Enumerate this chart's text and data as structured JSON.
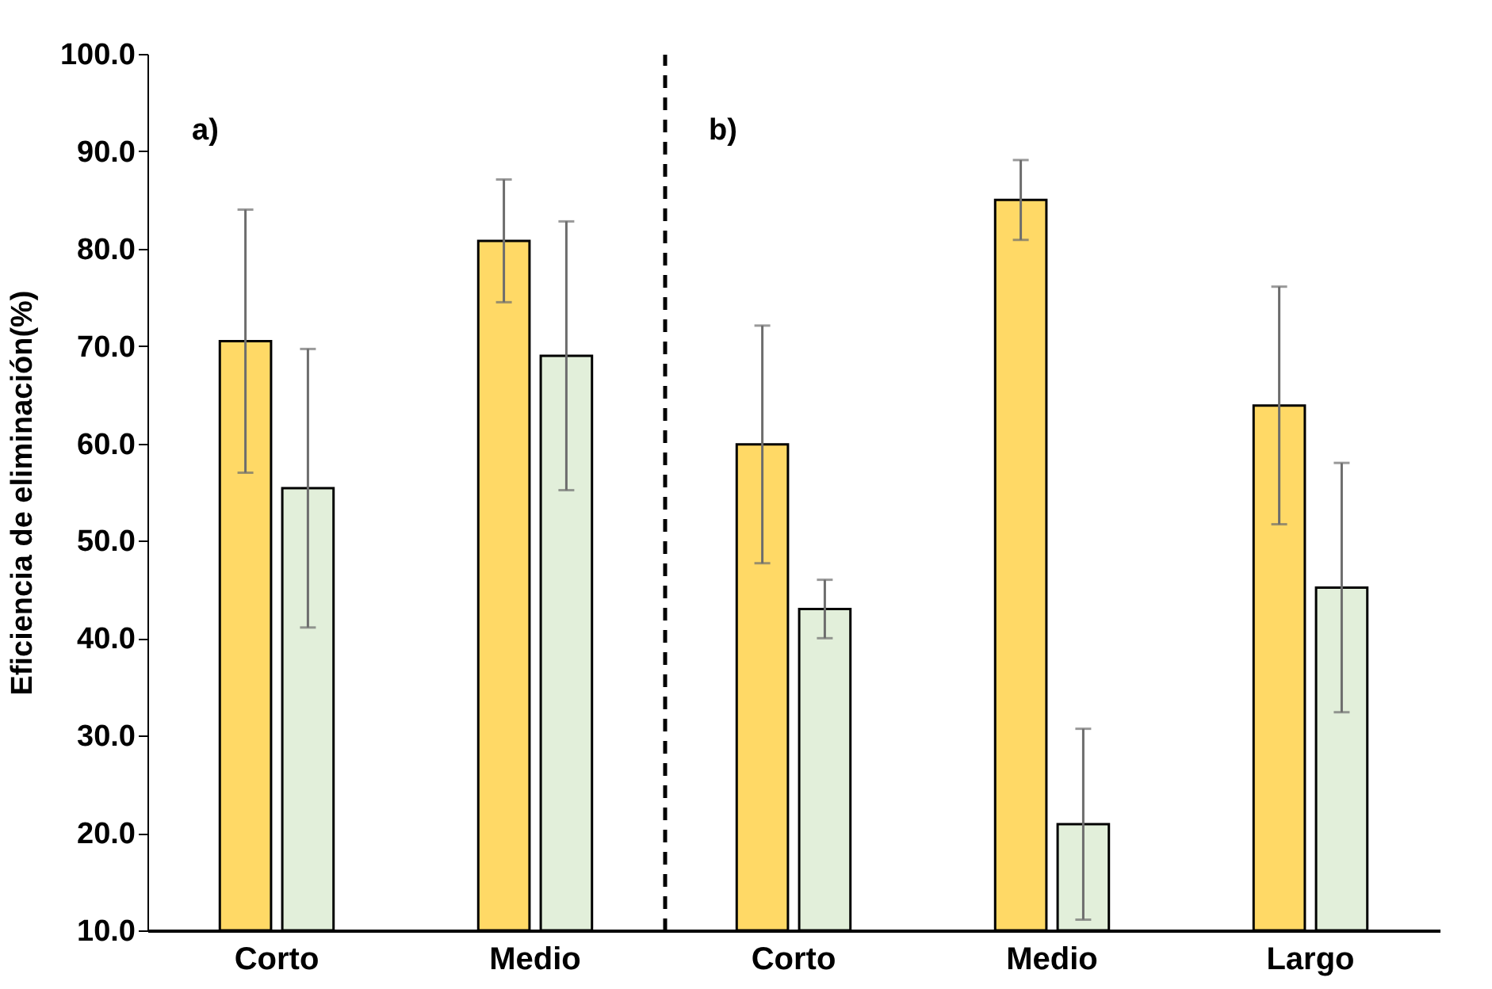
{
  "chart_data": [
    {
      "type": "bar",
      "categories": [
        "Corto",
        "Medio"
      ],
      "ylabel": "Eficiencia de eliminación(%)",
      "annotations": [
        "a)"
      ],
      "ylim": [
        10,
        100
      ],
      "yticks": [
        {
          "value": 10,
          "label": "10.0"
        },
        {
          "value": 20,
          "label": "20.0"
        },
        {
          "value": 30,
          "label": "30.0"
        },
        {
          "value": 40,
          "label": "40.0"
        },
        {
          "value": 50,
          "label": "50.0"
        },
        {
          "value": 60,
          "label": "60.0"
        },
        {
          "value": 70,
          "label": "70.0"
        },
        {
          "value": 80,
          "label": "80.0"
        },
        {
          "value": 90,
          "label": "90.0"
        },
        {
          "value": 100,
          "label": "100.0"
        }
      ],
      "series": [
        {
          "color": "#ffd966",
          "values": [
            70.5,
            80.8
          ],
          "errors": [
            13.5,
            6.3
          ]
        },
        {
          "color": "#e2efda",
          "values": [
            55.4,
            69.0
          ],
          "errors": [
            14.3,
            13.8
          ]
        }
      ]
    },
    {
      "type": "bar",
      "categories": [
        "Corto",
        "Medio",
        "Largo"
      ],
      "annotations": [
        "b)"
      ],
      "tick_labels": "x",
      "ylim": [
        10,
        100
      ],
      "series": [
        {
          "color": "#ffd966",
          "values": [
            59.9,
            85.0,
            63.9
          ],
          "errors": [
            12.2,
            4.1,
            12.2
          ]
        },
        {
          "color": "#e2efda",
          "values": [
            43.0,
            20.9,
            45.2
          ],
          "errors": [
            3.0,
            9.8,
            12.8
          ]
        }
      ]
    }
  ]
}
